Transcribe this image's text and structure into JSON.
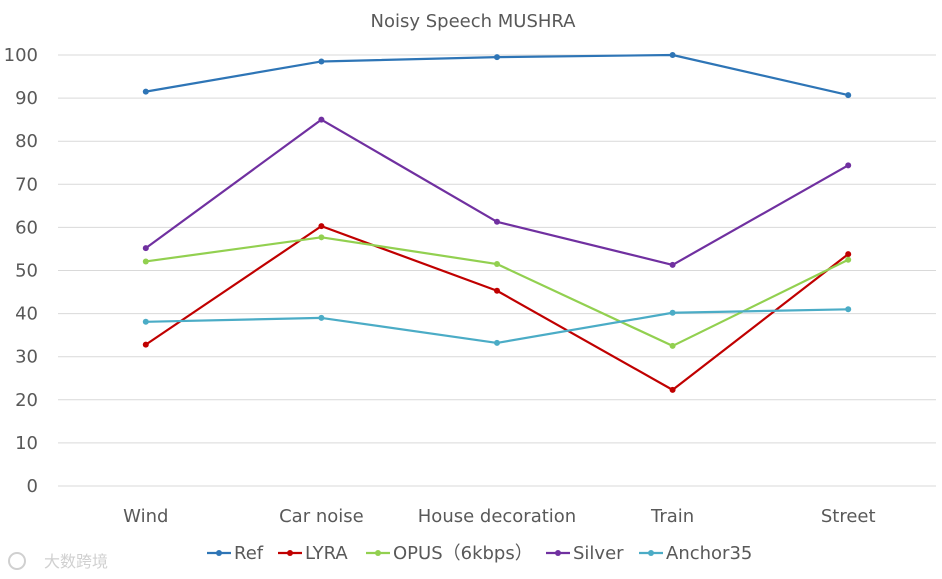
{
  "chart_data": {
    "type": "line",
    "title": "Noisy Speech MUSHRA",
    "categories": [
      "Wind",
      "Car noise",
      "House decoration",
      "Train",
      "Street"
    ],
    "ylim": [
      0,
      100
    ],
    "yticks": [
      0,
      10,
      20,
      30,
      40,
      50,
      60,
      70,
      80,
      90,
      100
    ],
    "grid": true,
    "legend_position": "bottom",
    "series": [
      {
        "name": "Ref",
        "color": "#2e75b6",
        "values": [
          91.5,
          98.5,
          99.5,
          100,
          90.7
        ]
      },
      {
        "name": "LYRA",
        "color": "#c00000",
        "values": [
          32.8,
          60.3,
          45.3,
          22.3,
          53.8
        ]
      },
      {
        "name": "OPUS（6kbps）",
        "color": "#92d050",
        "values": [
          52.1,
          57.7,
          51.5,
          32.5,
          52.5
        ]
      },
      {
        "name": "Silver",
        "color": "#7030a0",
        "values": [
          55.2,
          85.0,
          61.3,
          51.3,
          74.4
        ]
      },
      {
        "name": "Anchor35",
        "color": "#4bacc6",
        "values": [
          38.1,
          39.0,
          33.2,
          40.2,
          41.0
        ]
      }
    ]
  },
  "watermark": "大数跨境"
}
